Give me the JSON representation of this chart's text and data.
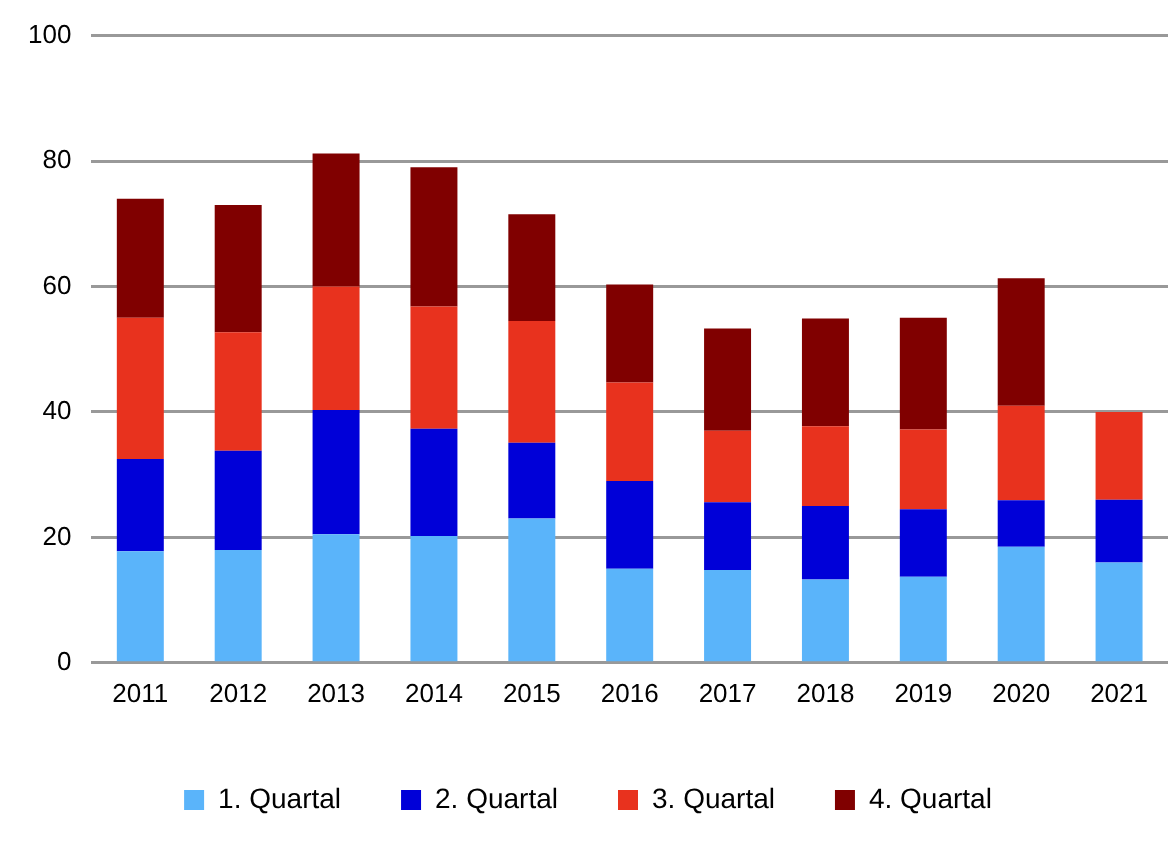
{
  "chart_data": {
    "type": "bar",
    "stacked": true,
    "categories": [
      "2011",
      "2012",
      "2013",
      "2014",
      "2015",
      "2016",
      "2017",
      "2018",
      "2019",
      "2020",
      "2021"
    ],
    "series": [
      {
        "name": "1. Quartal",
        "color": "#5ab4fa",
        "values": [
          17.8,
          18,
          20.5,
          20.2,
          23,
          15,
          14.8,
          13.3,
          13.7,
          18.5,
          16
        ]
      },
      {
        "name": "2. Quartal",
        "color": "#0000d8",
        "values": [
          14.7,
          15.8,
          19.8,
          17.1,
          12.1,
          14,
          10.8,
          11.7,
          10.8,
          7.4,
          10
        ]
      },
      {
        "name": "3. Quartal",
        "color": "#e8321e",
        "values": [
          22.5,
          18.9,
          19.7,
          19.5,
          19.4,
          15.7,
          11.4,
          12.7,
          12.7,
          15.1,
          14
        ]
      },
      {
        "name": "4. Quartal",
        "color": "#800000",
        "values": [
          19,
          20.3,
          21.2,
          22.2,
          17,
          15.6,
          16.3,
          17.2,
          17.8,
          20.3,
          null
        ]
      }
    ],
    "ylim": [
      0,
      100
    ],
    "yticks": [
      0,
      20,
      40,
      60,
      80,
      100
    ],
    "grid": "y",
    "legend": "bottom"
  }
}
